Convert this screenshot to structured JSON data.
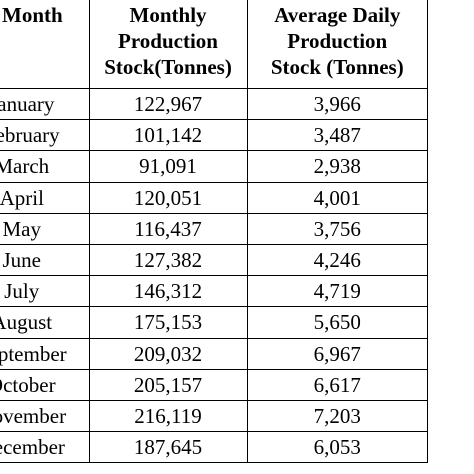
{
  "table": {
    "headers": {
      "month": "Month",
      "monthly": [
        "Monthly",
        "Production",
        "Stock(Tonnes)"
      ],
      "average": [
        "Average Daily",
        "Production",
        "Stock (Tonnes)"
      ]
    },
    "rows": [
      {
        "month": "January",
        "monthly": "122,967",
        "average": "3,966"
      },
      {
        "month": "February",
        "monthly": "101,142",
        "average": "3,487"
      },
      {
        "month": "March",
        "monthly": "91,091",
        "average": "2,938"
      },
      {
        "month": "April",
        "monthly": "120,051",
        "average": "4,001"
      },
      {
        "month": "May",
        "monthly": "116,437",
        "average": "3,756"
      },
      {
        "month": "June",
        "monthly": "127,382",
        "average": "4,246"
      },
      {
        "month": "July",
        "monthly": "146,312",
        "average": "4,719"
      },
      {
        "month": "August",
        "monthly": "175,153",
        "average": "5,650"
      },
      {
        "month": "September",
        "monthly": "209,032",
        "average": "6,967"
      },
      {
        "month": "October",
        "monthly": "205,157",
        "average": "6,617"
      },
      {
        "month": "November",
        "monthly": "216,119",
        "average": "7,203"
      },
      {
        "month": "December",
        "monthly": "187,645",
        "average": "6,053"
      }
    ]
  }
}
